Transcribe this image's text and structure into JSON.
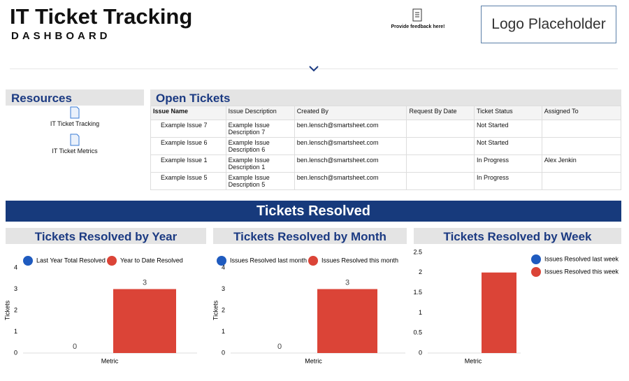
{
  "header": {
    "title": "IT Ticket Tracking",
    "subtitle": "DASHBOARD",
    "feedback": "Provide feedback here!",
    "logo": "Logo Placeholder"
  },
  "resources": {
    "title": "Resources",
    "items": [
      "IT Ticket Tracking",
      "IT Ticket Metrics"
    ]
  },
  "open_tickets": {
    "title": "Open Tickets",
    "columns": [
      "Issue Name",
      "Issue Description",
      "Created By",
      "Request By Date",
      "Ticket Status",
      "Assigned To"
    ],
    "rows": [
      [
        "Example Issue 7",
        "Example Issue Description 7",
        "ben.lensch@smartsheet.com",
        null,
        "Not Started",
        null
      ],
      [
        "Example Issue 6",
        "Example Issue Description 6",
        "ben.lensch@smartsheet.com",
        null,
        "Not Started",
        null
      ],
      [
        "Example Issue 1",
        "Example Issue Description 1",
        "ben.lensch@smartsheet.com",
        null,
        "In Progress",
        "Alex Jenkin"
      ],
      [
        "Example Issue 5",
        "Example Issue Description 5",
        "ben.lensch@smartsheet.com",
        null,
        "In Progress",
        null
      ]
    ]
  },
  "section_title": "Tickets Resolved",
  "chart_data": [
    {
      "type": "bar",
      "title": "Tickets Resolved by Year",
      "x_label": "Metric",
      "y_label": "Tickets",
      "categories": [
        null
      ],
      "series": [
        {
          "name": "Last Year Total Resolved",
          "color": "#1f5bbf",
          "values": [
            0
          ]
        },
        {
          "name": "Year to Date Resolved",
          "color": "#db4437",
          "values": [
            3
          ]
        }
      ],
      "ylim": [
        0,
        4
      ],
      "yticks": [
        0,
        1,
        2,
        3,
        4
      ],
      "legend": "top",
      "data_labels": true
    },
    {
      "type": "bar",
      "title": "Tickets Resolved by Month",
      "x_label": "Metric",
      "y_label": "Tickets",
      "categories": [
        null
      ],
      "series": [
        {
          "name": "Issues Resolved last month",
          "color": "#1f5bbf",
          "values": [
            0
          ]
        },
        {
          "name": "Issues Resolved this month",
          "color": "#db4437",
          "values": [
            3
          ]
        }
      ],
      "ylim": [
        0,
        4
      ],
      "yticks": [
        0,
        1,
        2,
        3,
        4
      ],
      "legend": "top",
      "data_labels": true
    },
    {
      "type": "bar",
      "title": "Tickets Resolved by Week",
      "x_label": "Metric",
      "categories": [
        null
      ],
      "series": [
        {
          "name": "Issues Resolved last week",
          "color": "#1f5bbf",
          "values": [
            0
          ]
        },
        {
          "name": "Issues Resolved this week",
          "color": "#db4437",
          "values": [
            2
          ]
        }
      ],
      "ylim": [
        0,
        2.5
      ],
      "yticks": [
        0,
        0.5,
        1,
        1.5,
        2,
        2.5
      ],
      "legend": "right",
      "data_labels": false
    }
  ]
}
